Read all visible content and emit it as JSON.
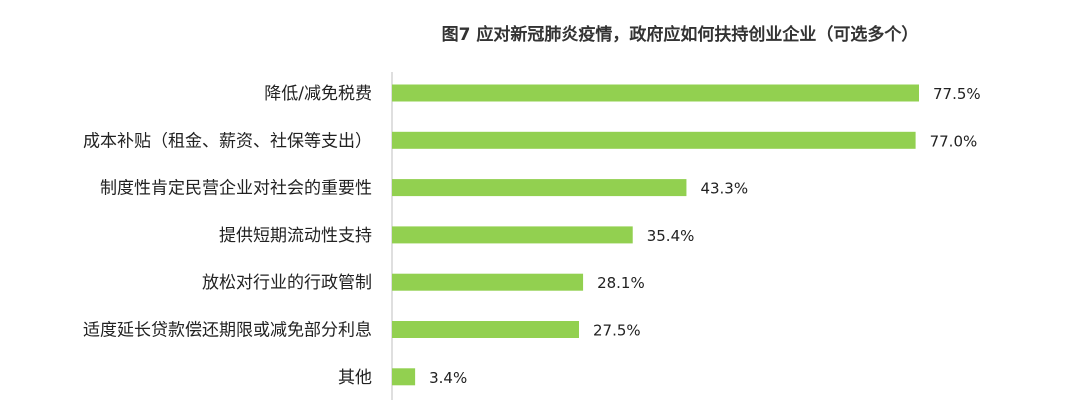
{
  "chart_data": {
    "type": "bar",
    "orientation": "horizontal",
    "title": "图7 应对新冠肺炎疫情，政府应如何扶持创业企业（可选多个）",
    "categories": [
      "降低/减免税费",
      "成本补贴（租金、薪资、社保等支出）",
      "制度性肯定民营企业对社会的重要性",
      "提供短期流动性支持",
      "放松对行业的行政管制",
      "适度延长贷款偿还期限或减免部分利息",
      "其他"
    ],
    "values": [
      77.5,
      77.0,
      43.3,
      35.4,
      28.1,
      27.5,
      3.4
    ],
    "value_labels": [
      "77.5%",
      "77.0%",
      "43.3%",
      "35.4%",
      "28.1%",
      "27.5%",
      "3.4%"
    ],
    "unit": "%",
    "xlim": [
      0,
      100
    ],
    "grid": false,
    "legend": "none",
    "bar_color": "#92d050",
    "axis_color": "#bfbfbf"
  }
}
